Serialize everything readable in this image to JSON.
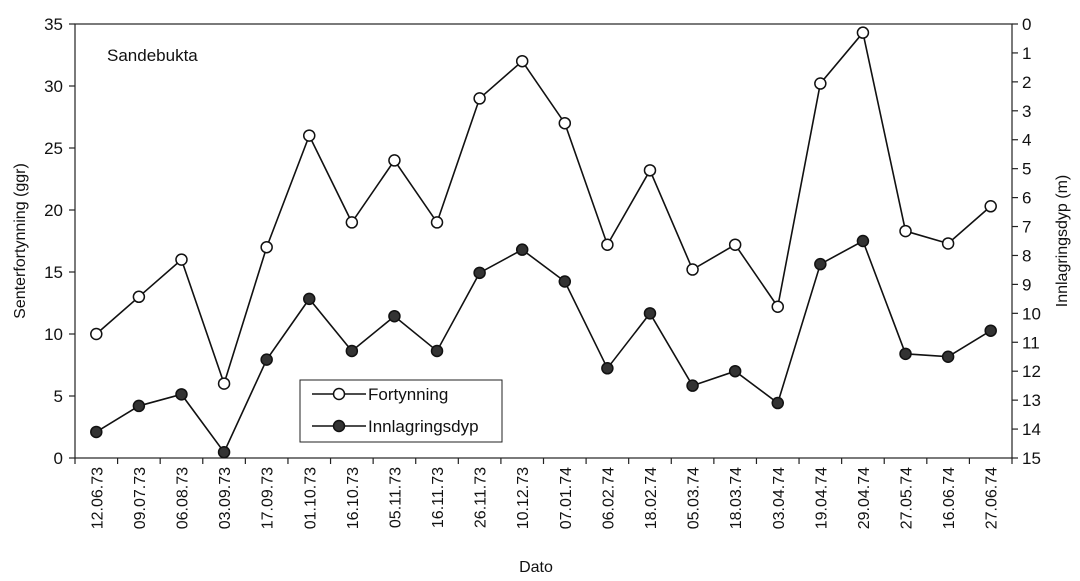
{
  "chart_data": {
    "type": "line",
    "annotation": "Sandebukta",
    "xlabel": "Dato",
    "ylabel": "Senterfortynning (ggr)",
    "y2label": "Innlagringsdyp (m)",
    "ylim": [
      0,
      35
    ],
    "y2lim": [
      0,
      15
    ],
    "y2_inverted": true,
    "yticks": [
      0,
      5,
      10,
      15,
      20,
      25,
      30,
      35
    ],
    "y2ticks": [
      0,
      1,
      2,
      3,
      4,
      5,
      6,
      7,
      8,
      9,
      10,
      11,
      12,
      13,
      14,
      15
    ],
    "categories": [
      "12.06.73",
      "09.07.73",
      "06.08.73",
      "03.09.73",
      "17.09.73",
      "01.10.73",
      "16.10.73",
      "05.11.73",
      "16.11.73",
      "26.11.73",
      "10.12.73",
      "07.01.74",
      "06.02.74",
      "18.02.74",
      "05.03.74",
      "18.03.74",
      "03.04.74",
      "19.04.74",
      "29.04.74",
      "27.05.74",
      "16.06.74",
      "27.06.74"
    ],
    "series": [
      {
        "name": "Fortynning",
        "axis": "left",
        "marker": "open-circle",
        "values": [
          10,
          13,
          16,
          6,
          17,
          26,
          19,
          24,
          19,
          29,
          32,
          27,
          17.2,
          23.2,
          15.2,
          17.2,
          12.2,
          30.2,
          34.3,
          18.3,
          17.3,
          20.3
        ]
      },
      {
        "name": "Innlagringsdyp",
        "axis": "right",
        "marker": "filled-circle",
        "values": [
          14.1,
          13.2,
          12.8,
          14.8,
          11.6,
          9.5,
          11.3,
          10.1,
          11.3,
          8.6,
          7.8,
          8.9,
          11.9,
          10.0,
          12.5,
          12.0,
          13.1,
          8.3,
          7.5,
          11.4,
          11.5,
          10.6
        ]
      }
    ],
    "legend_position": "bottom-center",
    "grid": false
  }
}
